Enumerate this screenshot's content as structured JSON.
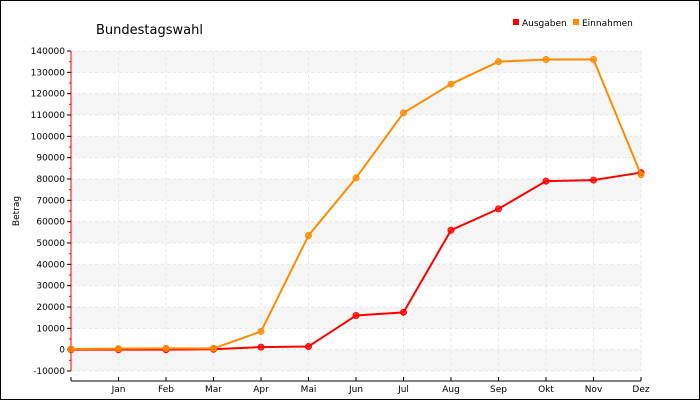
{
  "chart_data": {
    "type": "line",
    "title": "Bundestagswahl",
    "ylabel": "Betrag",
    "xlabel": "",
    "categories": [
      "",
      "Jan",
      "Feb",
      "Mar",
      "Apr",
      "Mai",
      "Jun",
      "Jul",
      "Aug",
      "Sep",
      "Okt",
      "Nov",
      "Dez"
    ],
    "ylim": [
      -10000,
      140000
    ],
    "yticks": [
      -10000,
      0,
      10000,
      20000,
      30000,
      40000,
      50000,
      60000,
      70000,
      80000,
      90000,
      100000,
      110000,
      120000,
      130000,
      140000
    ],
    "grid": true,
    "legend": "top-right",
    "series": [
      {
        "name": "Ausgaben",
        "color": "#ff0000",
        "values": [
          0,
          0,
          0,
          200,
          1200,
          1500,
          16000,
          17500,
          56000,
          66000,
          79000,
          79500,
          83000
        ]
      },
      {
        "name": "Einnahmen",
        "color": "#ff8c00",
        "values": [
          300,
          500,
          600,
          600,
          8500,
          53500,
          80500,
          111000,
          124500,
          135000,
          136000,
          136000,
          82000
        ]
      }
    ]
  }
}
